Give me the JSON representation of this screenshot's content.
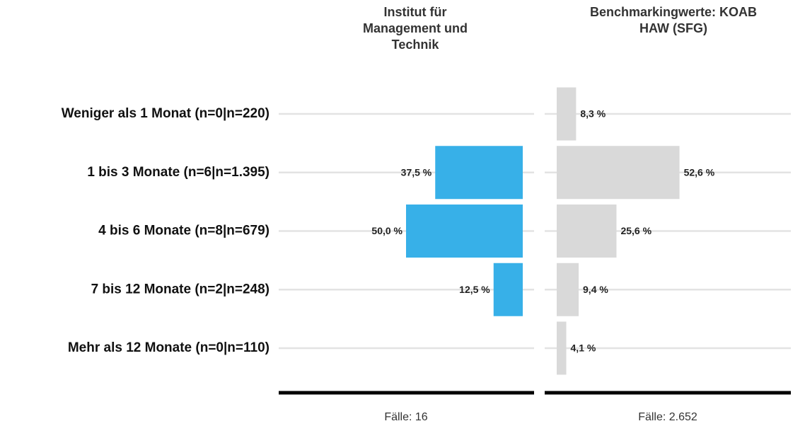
{
  "chart_data": {
    "type": "bar",
    "orientation": "horizontal",
    "categories": [
      "Weniger als 1 Monat (n=0|n=220)",
      "1 bis 3 Monate (n=6|n=1.395)",
      "4 bis 6 Monate (n=8|n=679)",
      "7 bis 12 Monate (n=2|n=248)",
      "Mehr als 12 Monate (n=0|n=110)"
    ],
    "xlim": [
      0,
      100
    ],
    "grid": true,
    "series": [
      {
        "name": "Institut für Management und Technik",
        "color": "#37b0e8",
        "direction": "left",
        "values": [
          0,
          37.5,
          50.0,
          12.5,
          0
        ],
        "value_labels": [
          null,
          "37,5 %",
          "50,0 %",
          "12,5 %",
          null
        ],
        "cases_label": "Fälle: 16"
      },
      {
        "name": "Benchmarkingwerte: KOAB HAW (SFG)",
        "color": "#d9d9d9",
        "direction": "right",
        "values": [
          8.3,
          52.6,
          25.6,
          9.4,
          4.1
        ],
        "value_labels": [
          "8,3 %",
          "52,6 %",
          "25,6 %",
          "9,4 %",
          "4,1 %"
        ],
        "cases_label": "Fälle: 2.652"
      }
    ]
  }
}
